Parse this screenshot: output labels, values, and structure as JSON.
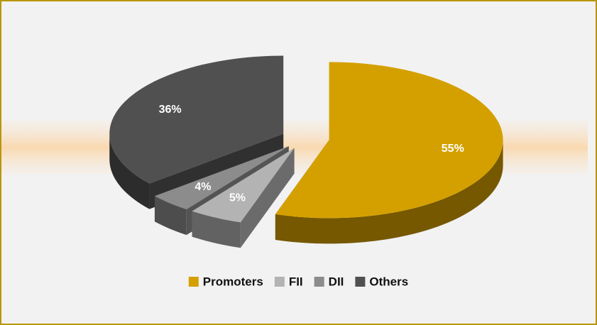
{
  "chart_data": {
    "type": "pie",
    "categories": [
      "Promoters",
      "FII",
      "DII",
      "Others"
    ],
    "values": [
      55,
      5,
      4,
      36
    ],
    "value_labels": [
      "55%",
      "5%",
      "4%",
      "36%"
    ],
    "colors": [
      "#d4a000",
      "#b3b3b3",
      "#8c8c8c",
      "#505050"
    ],
    "legend": "bottom"
  }
}
